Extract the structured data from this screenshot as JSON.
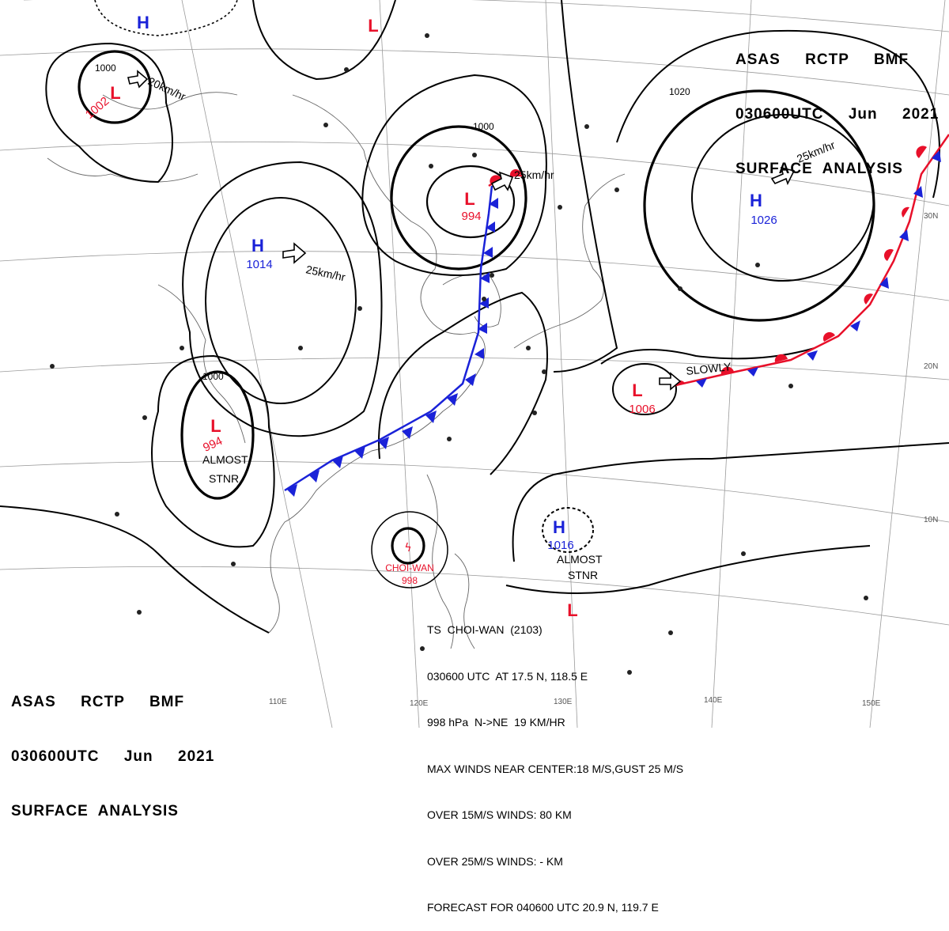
{
  "header": {
    "line1": "ASAS     RCTP     BMF",
    "line2": "030600UTC     Jun     2021",
    "line3": "SURFACE  ANALYSIS"
  },
  "storm_info": {
    "line1": "TS  CHOI-WAN  (2103)",
    "line2": "030600 UTC  AT 17.5 N, 118.5 E",
    "line3": "998 hPa  N->NE  19 KM/HR",
    "line4": "MAX WINDS NEAR CENTER:18 M/S,GUST 25 M/S",
    "line5": "OVER 15M/S WINDS: 80 KM",
    "line6": "OVER 25M/S WINDS: - KM",
    "line7": "FORECAST FOR 040600 UTC 20.9 N, 119.7 E"
  },
  "pressure_centers": [
    {
      "type": "L",
      "value": "1002"
    },
    {
      "type": "L",
      "value": "994"
    },
    {
      "type": "L",
      "value": "994"
    },
    {
      "type": "L",
      "value": "1006"
    },
    {
      "type": "H",
      "value": "1014"
    },
    {
      "type": "H",
      "value": "1026"
    },
    {
      "type": "H",
      "value": "1016"
    },
    {
      "type": "H",
      "value": ""
    },
    {
      "type": "L",
      "value": ""
    }
  ],
  "storm_name": "CHOI-WAN",
  "storm_pressure": "998",
  "isobar_labels": [
    "1000",
    "1000",
    "1000",
    "1020"
  ],
  "motion_labels": [
    "20km/hr",
    "25km/hr",
    "25km/hr",
    "25km/hr",
    "SLOWLY"
  ],
  "annotations": [
    "ALMOST",
    "STNR",
    "ALMOST",
    "STNR"
  ],
  "longitude_labels": [
    "110E",
    "120E",
    "130E",
    "140E",
    "150E"
  ],
  "latitude_labels": [
    "30N",
    "20N",
    "10N"
  ],
  "colors": {
    "low": "#e8102a",
    "high": "#1a22d8",
    "cold_front": "#1a22d8",
    "warm_front": "#e8102a",
    "isobar": "#000000",
    "coast": "#555555"
  }
}
